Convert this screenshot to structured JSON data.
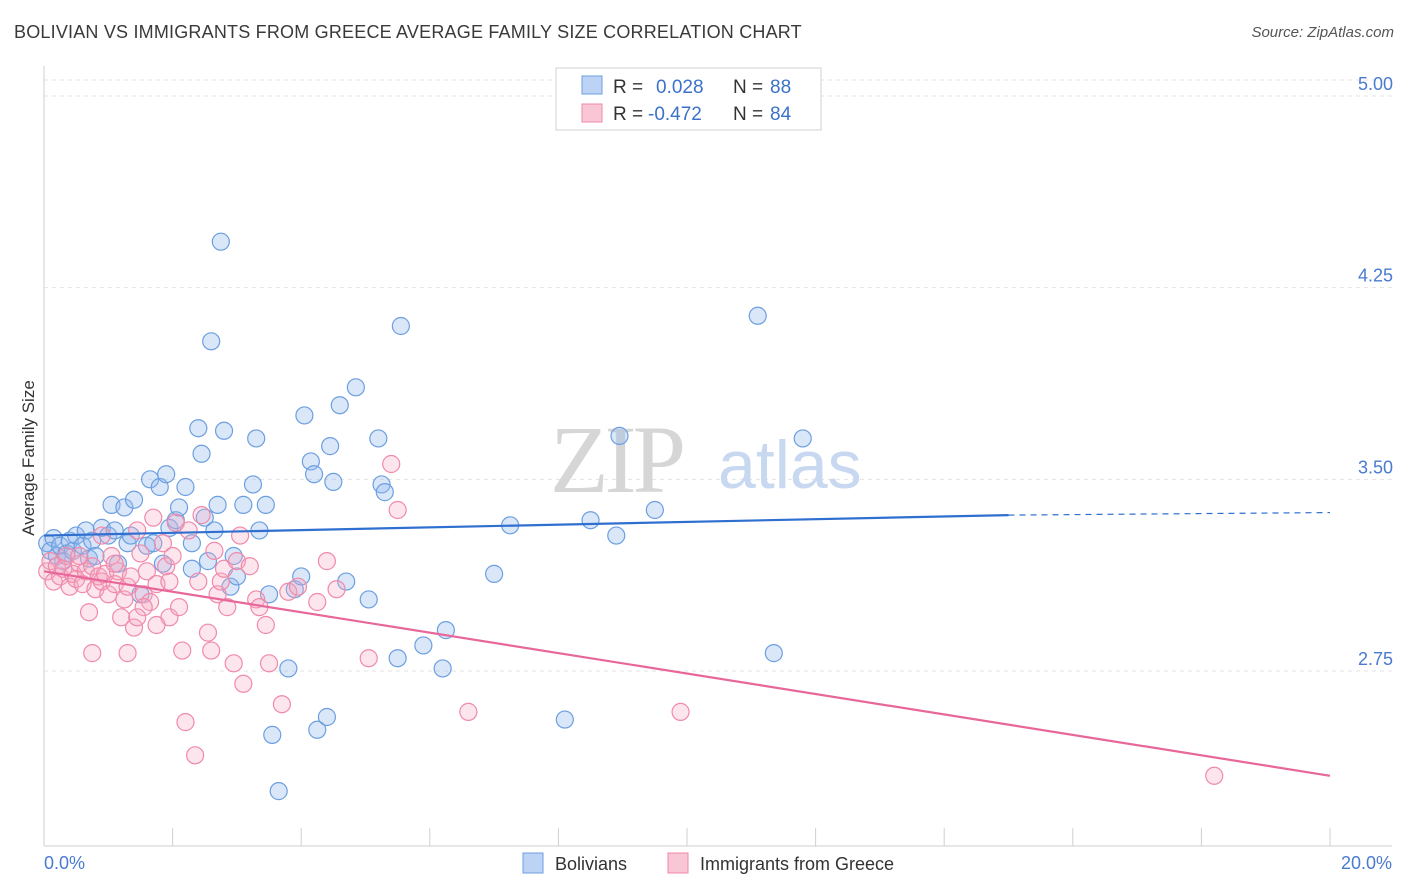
{
  "title": "BOLIVIAN VS IMMIGRANTS FROM GREECE AVERAGE FAMILY SIZE CORRELATION CHART",
  "source": "Source: ZipAtlas.com",
  "watermark": {
    "zip": "ZIP",
    "atlas": "atlas"
  },
  "colors": {
    "blue": "#6c9fe0",
    "blue_line": "#2f6fd0",
    "pink": "#f08aaa",
    "pink_line": "#e8679a"
  },
  "chart_data": {
    "type": "scatter",
    "title": "BOLIVIAN VS IMMIGRANTS FROM GREECE AVERAGE FAMILY SIZE CORRELATION CHART",
    "xlabel": "",
    "ylabel": "Average Family Size",
    "xlim": [
      0,
      20
    ],
    "ylim": [
      2.0,
      5.05
    ],
    "x_tick_labels": [
      "0.0%",
      "20.0%"
    ],
    "y_ticks": [
      2.75,
      3.5,
      4.25,
      5.0
    ],
    "y_tick_labels": [
      "2.75",
      "3.50",
      "4.25",
      "5.00"
    ],
    "legend": {
      "rows": [
        {
          "r_label": "R =",
          "r_value": "0.028",
          "n_label": "N =",
          "n_value": "88"
        },
        {
          "r_label": "R =",
          "r_value": "-0.472",
          "n_label": "N =",
          "n_value": "84"
        }
      ]
    },
    "series": [
      {
        "name": "Bolivians",
        "color": "#6c9fe0",
        "trend": {
          "x0": 0,
          "y0": 3.28,
          "x1": 15.0,
          "y1": 3.36,
          "dash_to_x": 20.0,
          "dash_to_y": 3.37
        },
        "points": [
          [
            0.05,
            3.25
          ],
          [
            0.1,
            3.22
          ],
          [
            0.15,
            3.27
          ],
          [
            0.2,
            3.2
          ],
          [
            0.25,
            3.24
          ],
          [
            0.3,
            3.18
          ],
          [
            0.35,
            3.21
          ],
          [
            0.4,
            3.26
          ],
          [
            0.45,
            3.22
          ],
          [
            0.5,
            3.28
          ],
          [
            0.6,
            3.24
          ],
          [
            0.65,
            3.3
          ],
          [
            0.7,
            3.19
          ],
          [
            0.75,
            3.26
          ],
          [
            0.8,
            3.2
          ],
          [
            0.9,
            3.31
          ],
          [
            1.0,
            3.28
          ],
          [
            1.05,
            3.4
          ],
          [
            1.1,
            3.3
          ],
          [
            1.15,
            3.17
          ],
          [
            1.25,
            3.39
          ],
          [
            1.3,
            3.25
          ],
          [
            1.35,
            3.28
          ],
          [
            1.4,
            3.42
          ],
          [
            1.5,
            3.05
          ],
          [
            1.6,
            3.24
          ],
          [
            1.65,
            3.5
          ],
          [
            1.7,
            3.25
          ],
          [
            1.8,
            3.47
          ],
          [
            1.85,
            3.17
          ],
          [
            1.9,
            3.52
          ],
          [
            1.95,
            3.31
          ],
          [
            2.05,
            3.34
          ],
          [
            2.1,
            3.39
          ],
          [
            2.2,
            3.47
          ],
          [
            2.3,
            3.15
          ],
          [
            2.3,
            3.25
          ],
          [
            2.4,
            3.7
          ],
          [
            2.45,
            3.6
          ],
          [
            2.5,
            3.35
          ],
          [
            2.55,
            3.18
          ],
          [
            2.6,
            4.04
          ],
          [
            2.65,
            3.3
          ],
          [
            2.7,
            3.4
          ],
          [
            2.75,
            4.43
          ],
          [
            2.8,
            3.69
          ],
          [
            2.9,
            3.08
          ],
          [
            2.95,
            3.2
          ],
          [
            3.0,
            3.12
          ],
          [
            3.1,
            3.4
          ],
          [
            3.25,
            3.48
          ],
          [
            3.3,
            3.66
          ],
          [
            3.35,
            3.3
          ],
          [
            3.45,
            3.4
          ],
          [
            3.5,
            3.05
          ],
          [
            3.55,
            2.5
          ],
          [
            3.65,
            2.28
          ],
          [
            3.8,
            2.76
          ],
          [
            3.9,
            3.07
          ],
          [
            4.0,
            3.12
          ],
          [
            4.05,
            3.75
          ],
          [
            4.15,
            3.57
          ],
          [
            4.2,
            3.52
          ],
          [
            4.25,
            2.52
          ],
          [
            4.4,
            2.57
          ],
          [
            4.45,
            3.63
          ],
          [
            4.5,
            3.49
          ],
          [
            4.6,
            3.79
          ],
          [
            4.7,
            3.1
          ],
          [
            4.85,
            3.86
          ],
          [
            5.05,
            3.03
          ],
          [
            5.2,
            3.66
          ],
          [
            5.25,
            3.48
          ],
          [
            5.3,
            3.45
          ],
          [
            5.5,
            2.8
          ],
          [
            5.55,
            4.1
          ],
          [
            5.9,
            2.85
          ],
          [
            6.2,
            2.76
          ],
          [
            6.25,
            2.91
          ],
          [
            7.0,
            3.13
          ],
          [
            7.25,
            3.32
          ],
          [
            8.1,
            2.56
          ],
          [
            8.5,
            3.34
          ],
          [
            8.9,
            3.28
          ],
          [
            8.95,
            3.67
          ],
          [
            9.5,
            3.38
          ],
          [
            11.1,
            4.14
          ],
          [
            11.35,
            2.82
          ],
          [
            11.8,
            3.66
          ]
        ]
      },
      {
        "name": "Immigrants from Greece",
        "color": "#f08aaa",
        "trend": {
          "x0": 0,
          "y0": 3.14,
          "x1": 20.0,
          "y1": 2.34
        },
        "points": [
          [
            0.05,
            3.14
          ],
          [
            0.1,
            3.18
          ],
          [
            0.15,
            3.1
          ],
          [
            0.2,
            3.16
          ],
          [
            0.25,
            3.12
          ],
          [
            0.3,
            3.15
          ],
          [
            0.35,
            3.2
          ],
          [
            0.4,
            3.08
          ],
          [
            0.45,
            3.13
          ],
          [
            0.5,
            3.11
          ],
          [
            0.55,
            3.17
          ],
          [
            0.6,
            3.09
          ],
          [
            0.65,
            3.14
          ],
          [
            0.7,
            2.98
          ],
          [
            0.75,
            3.16
          ],
          [
            0.8,
            3.07
          ],
          [
            0.85,
            3.12
          ],
          [
            0.9,
            3.1
          ],
          [
            0.95,
            3.13
          ],
          [
            1.0,
            3.05
          ],
          [
            1.05,
            3.2
          ],
          [
            1.1,
            3.09
          ],
          [
            1.15,
            3.14
          ],
          [
            1.2,
            2.96
          ],
          [
            1.25,
            3.03
          ],
          [
            1.3,
            3.08
          ],
          [
            1.35,
            3.12
          ],
          [
            1.4,
            2.92
          ],
          [
            1.45,
            3.3
          ],
          [
            1.5,
            3.21
          ],
          [
            1.55,
            3.05
          ],
          [
            1.6,
            3.14
          ],
          [
            1.65,
            3.02
          ],
          [
            1.7,
            3.35
          ],
          [
            1.75,
            3.09
          ],
          [
            1.85,
            3.25
          ],
          [
            1.9,
            3.16
          ],
          [
            1.95,
            2.96
          ],
          [
            2.0,
            3.2
          ],
          [
            2.05,
            3.33
          ],
          [
            2.15,
            2.83
          ],
          [
            2.2,
            2.55
          ],
          [
            2.35,
            2.42
          ],
          [
            2.45,
            3.36
          ],
          [
            2.55,
            2.9
          ],
          [
            2.6,
            2.83
          ],
          [
            2.7,
            3.05
          ],
          [
            2.75,
            3.1
          ],
          [
            2.8,
            3.15
          ],
          [
            2.85,
            3.0
          ],
          [
            2.95,
            2.78
          ],
          [
            3.0,
            3.18
          ],
          [
            3.05,
            3.28
          ],
          [
            3.1,
            2.7
          ],
          [
            3.2,
            3.16
          ],
          [
            3.3,
            3.03
          ],
          [
            3.45,
            2.93
          ],
          [
            3.5,
            2.78
          ],
          [
            3.7,
            2.62
          ],
          [
            3.8,
            3.06
          ],
          [
            3.95,
            3.08
          ],
          [
            4.25,
            3.02
          ],
          [
            4.4,
            3.18
          ],
          [
            4.55,
            3.07
          ],
          [
            5.05,
            2.8
          ],
          [
            5.4,
            3.56
          ],
          [
            5.5,
            3.38
          ],
          [
            6.6,
            2.59
          ],
          [
            9.9,
            2.59
          ],
          [
            18.2,
            2.34
          ],
          [
            1.3,
            2.82
          ],
          [
            1.55,
            3.0
          ],
          [
            1.75,
            2.93
          ],
          [
            2.1,
            3.0
          ],
          [
            2.4,
            3.1
          ],
          [
            0.55,
            3.2
          ],
          [
            0.9,
            3.28
          ],
          [
            1.1,
            3.17
          ],
          [
            0.75,
            2.82
          ],
          [
            1.45,
            2.96
          ],
          [
            1.95,
            3.1
          ],
          [
            2.25,
            3.3
          ],
          [
            2.65,
            3.22
          ],
          [
            3.35,
            3.0
          ]
        ]
      }
    ]
  },
  "bottom_legend": {
    "items": [
      "Bolivians",
      "Immigrants from Greece"
    ]
  }
}
